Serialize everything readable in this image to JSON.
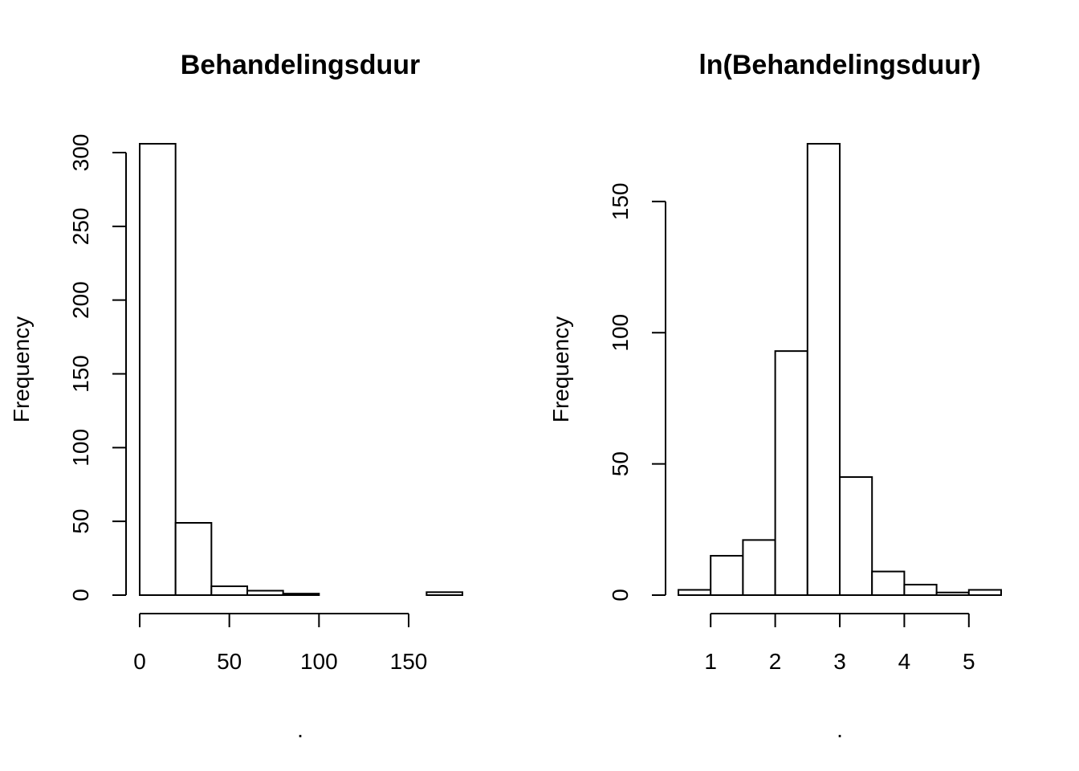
{
  "chart_data": [
    {
      "type": "bar",
      "title": "Behandelingsduur",
      "xlabel": ".",
      "ylabel": "Frequency",
      "bins": [
        {
          "from": 0,
          "to": 20,
          "count": 306
        },
        {
          "from": 20,
          "to": 40,
          "count": 49
        },
        {
          "from": 40,
          "to": 60,
          "count": 6
        },
        {
          "from": 60,
          "to": 80,
          "count": 3
        },
        {
          "from": 80,
          "to": 100,
          "count": 1
        },
        {
          "from": 100,
          "to": 120,
          "count": 0
        },
        {
          "from": 120,
          "to": 140,
          "count": 0
        },
        {
          "from": 140,
          "to": 160,
          "count": 0
        },
        {
          "from": 160,
          "to": 180,
          "count": 2
        }
      ],
      "xlim": [
        0,
        180
      ],
      "ylim": [
        0,
        306
      ],
      "xticks": [
        0,
        50,
        100,
        150
      ],
      "xtick_labels": [
        "0",
        "50",
        "100",
        "150"
      ],
      "yticks": [
        0,
        50,
        100,
        150,
        200,
        250,
        300
      ],
      "ytick_labels": [
        "0",
        "50",
        "100",
        "150",
        "200",
        "250",
        "300"
      ]
    },
    {
      "type": "bar",
      "title": "ln(Behandelingsduur)",
      "xlabel": ".",
      "ylabel": "Frequency",
      "bins": [
        {
          "from": 0.5,
          "to": 1.0,
          "count": 2
        },
        {
          "from": 1.0,
          "to": 1.5,
          "count": 15
        },
        {
          "from": 1.5,
          "to": 2.0,
          "count": 21
        },
        {
          "from": 2.0,
          "to": 2.5,
          "count": 93
        },
        {
          "from": 2.5,
          "to": 3.0,
          "count": 172
        },
        {
          "from": 3.0,
          "to": 3.5,
          "count": 45
        },
        {
          "from": 3.5,
          "to": 4.0,
          "count": 9
        },
        {
          "from": 4.0,
          "to": 4.5,
          "count": 4
        },
        {
          "from": 4.5,
          "to": 5.0,
          "count": 1
        },
        {
          "from": 5.0,
          "to": 5.5,
          "count": 2
        }
      ],
      "xlim": [
        0.5,
        5.5
      ],
      "ylim": [
        0,
        172
      ],
      "xticks": [
        1,
        2,
        3,
        4,
        5
      ],
      "xtick_labels": [
        "1",
        "2",
        "3",
        "4",
        "5"
      ],
      "yticks": [
        0,
        50,
        100,
        150
      ],
      "ytick_labels": [
        "0",
        "50",
        "100",
        "150"
      ]
    }
  ]
}
